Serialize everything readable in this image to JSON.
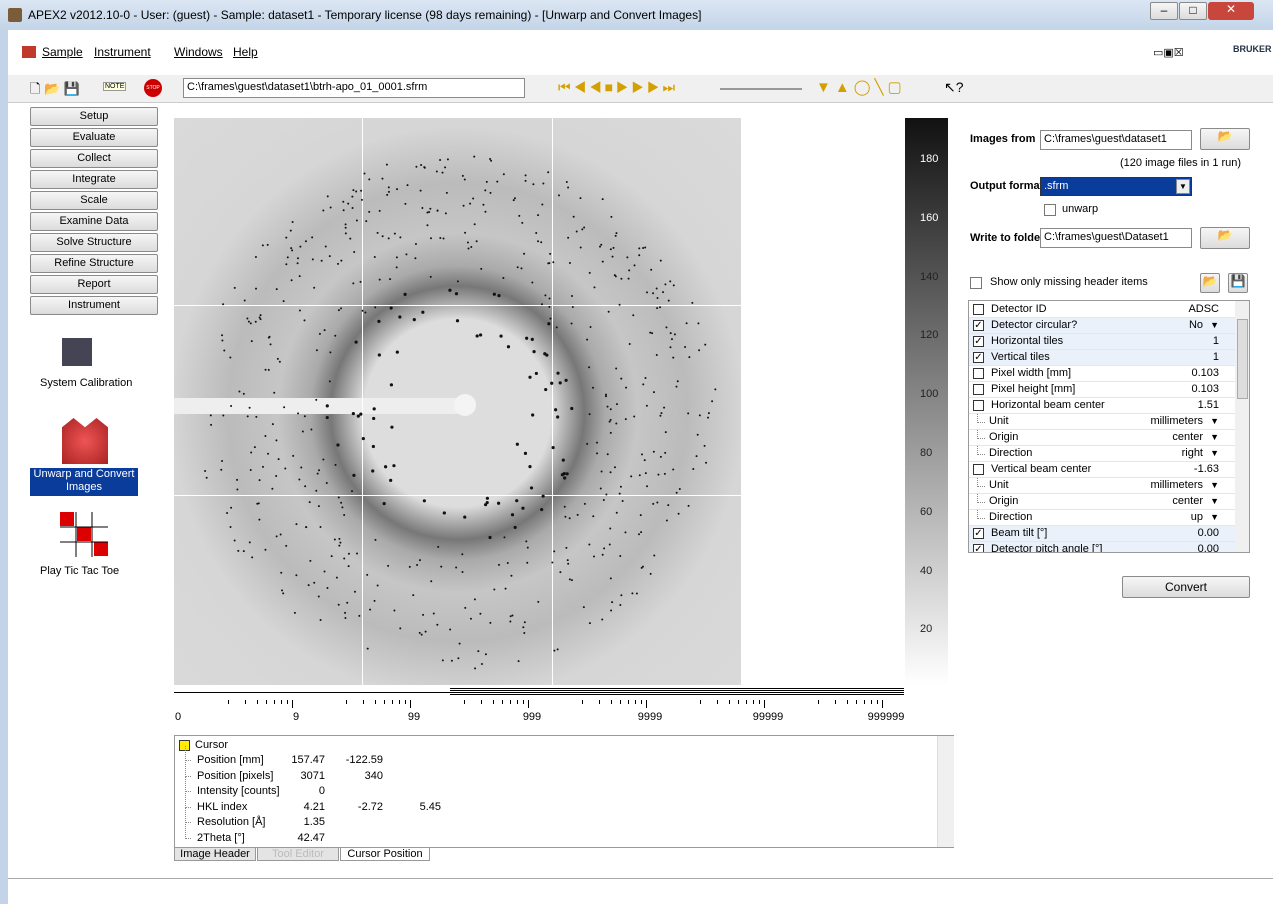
{
  "window": {
    "title": "APEX2 v2012.10-0 - User: (guest) - Sample: dataset1 - Temporary license (98 days remaining) - [Unwarp and Convert Images]"
  },
  "menu": [
    "Sample",
    "Instrument",
    "Windows",
    "Help"
  ],
  "logo": "BRUKER",
  "toolbar": {
    "note": "NOTE",
    "stop": "STOP",
    "file_path": "C:\\frames\\guest\\dataset1\\btrh-apo_01_0001.sfrm"
  },
  "nav": [
    "Setup",
    "Evaluate",
    "Collect",
    "Integrate",
    "Scale",
    "Examine Data",
    "Solve Structure",
    "Refine Structure",
    "Report",
    "Instrument"
  ],
  "tools": [
    "System Calibration",
    "Unwarp and Convert Images",
    "Play Tic Tac Toe"
  ],
  "intensity_scale": [
    "180",
    "160",
    "140",
    "120",
    "100",
    "80",
    "60",
    "40",
    "20"
  ],
  "slider_labels": [
    "0",
    "9",
    "99",
    "999",
    "9999",
    "99999",
    "999999"
  ],
  "convert_panel": {
    "images_from_label": "Images from",
    "images_from": "C:\\frames\\guest\\dataset1",
    "image_count": "(120 image files in 1 run)",
    "output_format_label": "Output format",
    "output_format": ".sfrm",
    "unwarp": "unwarp",
    "write_to_label": "Write to folder",
    "write_to": "C:\\frames\\guest\\Dataset1",
    "show_missing": "Show only missing header items",
    "convert": "Convert"
  },
  "properties": [
    {
      "name": "Detector ID",
      "value": "ADSC",
      "checked": false
    },
    {
      "name": "Detector circular?",
      "value": "No",
      "checked": true,
      "dropdown": true
    },
    {
      "name": "Horizontal tiles",
      "value": "1",
      "checked": true
    },
    {
      "name": "Vertical tiles",
      "value": "1",
      "checked": true
    },
    {
      "name": "Pixel width [mm]",
      "value": "0.103",
      "checked": false
    },
    {
      "name": "Pixel height [mm]",
      "value": "0.103",
      "checked": false
    },
    {
      "name": "Horizontal beam center",
      "value": "1.51",
      "checked": false
    },
    {
      "name": "Unit",
      "value": "millimeters",
      "dropdown": true,
      "sub": true
    },
    {
      "name": "Origin",
      "value": "center",
      "dropdown": true,
      "sub": true
    },
    {
      "name": "Direction",
      "value": "right",
      "dropdown": true,
      "sub": true
    },
    {
      "name": "Vertical beam center",
      "value": "-1.63",
      "checked": false
    },
    {
      "name": "Unit",
      "value": "millimeters",
      "dropdown": true,
      "sub": true
    },
    {
      "name": "Origin",
      "value": "center",
      "dropdown": true,
      "sub": true
    },
    {
      "name": "Direction",
      "value": "up",
      "dropdown": true,
      "sub": true
    },
    {
      "name": "Beam tilt [°]",
      "value": "0.00",
      "checked": true
    },
    {
      "name": "Detector pitch angle [°]",
      "value": "0.00",
      "checked": true
    }
  ],
  "cursor_panel": {
    "title": "Cursor",
    "rows": [
      {
        "label": "Position [mm]",
        "values": [
          "157.47",
          "-122.59"
        ]
      },
      {
        "label": "Position [pixels]",
        "values": [
          "3071",
          "340"
        ]
      },
      {
        "label": "Intensity [counts]",
        "values": [
          "0"
        ]
      },
      {
        "label": "HKL index",
        "values": [
          "4.21",
          "-2.72",
          "5.45"
        ]
      },
      {
        "label": "Resolution [Å]",
        "values": [
          "1.35"
        ]
      },
      {
        "label": "2Theta [°]",
        "values": [
          "42.47"
        ]
      }
    ]
  },
  "tabs": [
    "Image Header",
    "Tool Editor",
    "Cursor Position"
  ]
}
